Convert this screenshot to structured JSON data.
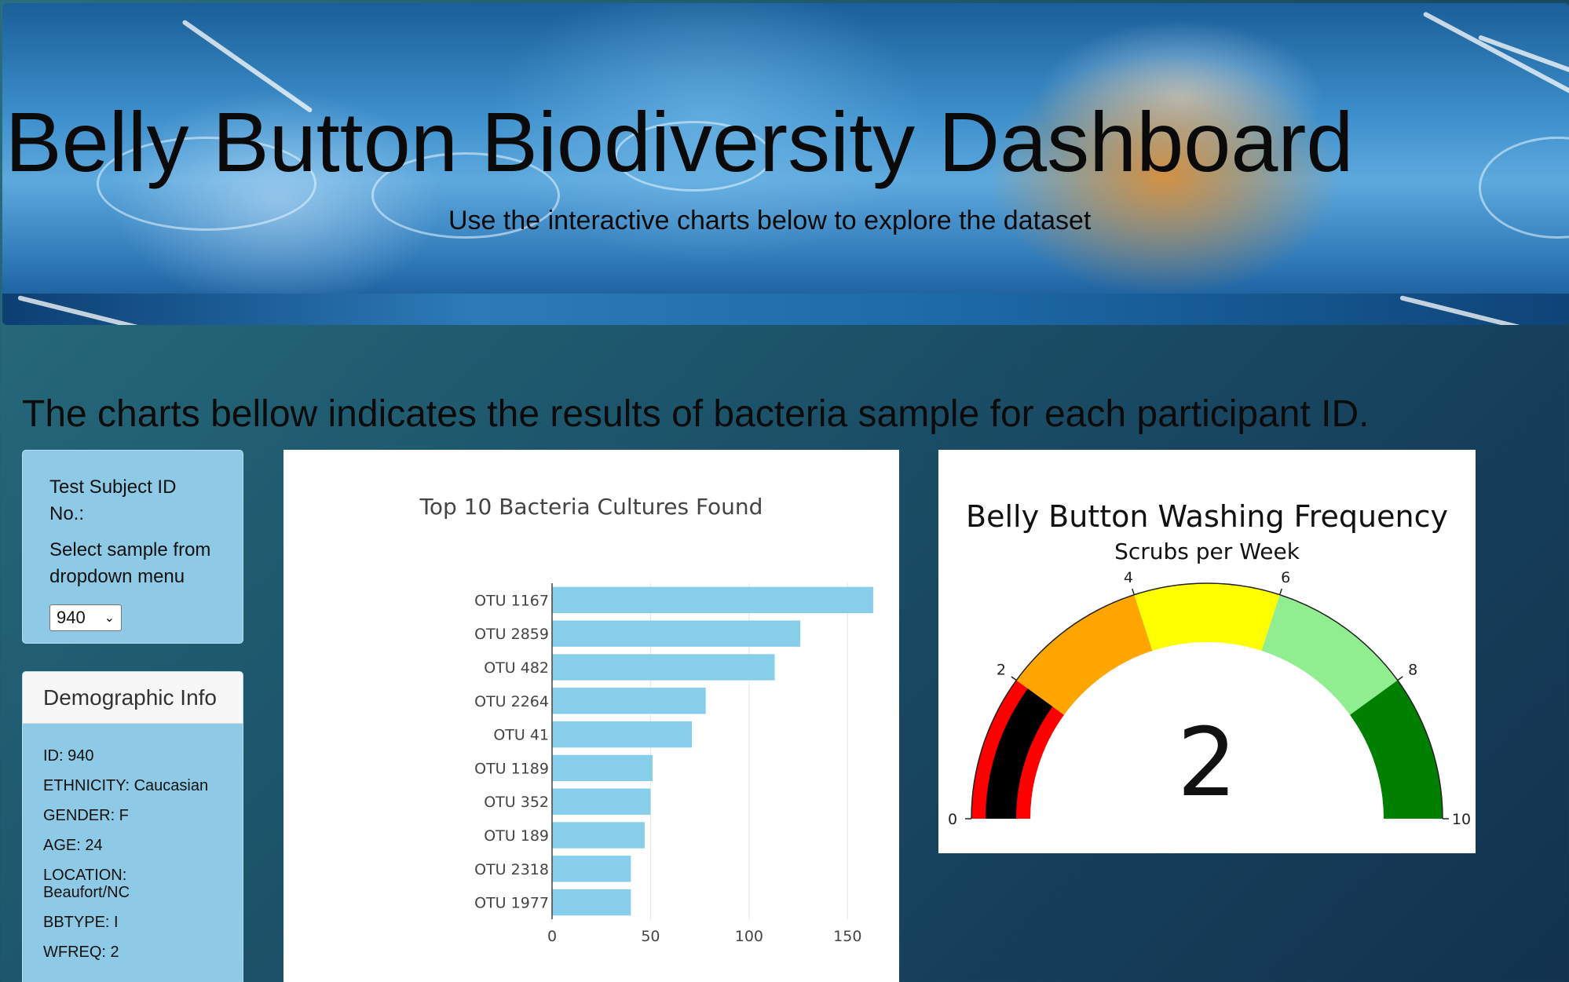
{
  "header": {
    "title": "Belly Button Biodiversity Dashboard",
    "subtitle": "Use the interactive charts below to explore the dataset"
  },
  "intro": "The charts bellow indicates the results of bacteria sample for each participant ID.",
  "selector": {
    "label": "Test Subject ID No.:",
    "hint": "Select sample from dropdown menu",
    "selected": "940"
  },
  "demographics": {
    "heading": "Demographic Info",
    "rows": [
      "ID: 940",
      "ETHNICITY: Caucasian",
      "GENDER: F",
      "AGE: 24",
      "LOCATION: Beaufort/NC",
      "BBTYPE: I",
      "WFREQ: 2"
    ]
  },
  "chart_data": [
    {
      "type": "bar",
      "orientation": "horizontal",
      "title": "Top 10 Bacteria Cultures Found",
      "categories": [
        "OTU 1167",
        "OTU 2859",
        "OTU 482",
        "OTU 2264",
        "OTU 41",
        "OTU 1189",
        "OTU 352",
        "OTU 189",
        "OTU 2318",
        "OTU 1977"
      ],
      "values": [
        163,
        126,
        113,
        78,
        71,
        51,
        50,
        47,
        40,
        40
      ],
      "xticks": [
        0,
        50,
        100,
        150
      ],
      "xlim": [
        0,
        171
      ],
      "color": "#87ceeb",
      "grid": true
    },
    {
      "type": "gauge",
      "title": "Belly Button Washing Frequency",
      "subtitle": "Scrubs per Week",
      "value": 2,
      "value_label": "2",
      "range": [
        0,
        10
      ],
      "ticks": [
        0,
        2,
        4,
        6,
        8,
        10
      ],
      "steps": [
        {
          "range": [
            0,
            2
          ],
          "color": "#ff0000"
        },
        {
          "range": [
            2,
            4
          ],
          "color": "#ffa500"
        },
        {
          "range": [
            4,
            6
          ],
          "color": "#ffff00"
        },
        {
          "range": [
            6,
            8
          ],
          "color": "#90ee90"
        },
        {
          "range": [
            8,
            10
          ],
          "color": "#008000"
        }
      ],
      "bar_color": "#000000"
    }
  ]
}
